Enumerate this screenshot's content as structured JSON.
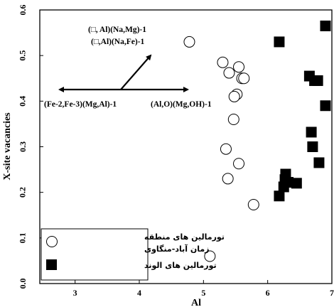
{
  "chart_data": {
    "type": "scatter",
    "xlabel": "Al",
    "ylabel": "X-site vacancies",
    "xlim": [
      2.45,
      7.0
    ],
    "ylim": [
      0.0,
      0.6
    ],
    "x_ticks": [
      "3",
      "4",
      "5",
      "6",
      "7"
    ],
    "y_ticks": [
      "0.0",
      "0.1",
      "0.2",
      "0.3",
      "0.4",
      "0.5",
      "0.6"
    ],
    "grid": false,
    "legend_position": "bottom-left",
    "series": [
      {
        "name": "تورمالین های منطقه زمان آباد-منگاوی",
        "legend_line1": "تورمالین های منطقه",
        "legend_line2": "زمان آباد-منگاوی",
        "marker": "open-circle",
        "points": [
          [
            4.78,
            0.53
          ],
          [
            5.3,
            0.485
          ],
          [
            5.4,
            0.462
          ],
          [
            5.55,
            0.475
          ],
          [
            5.6,
            0.45
          ],
          [
            5.63,
            0.45
          ],
          [
            5.52,
            0.415
          ],
          [
            5.48,
            0.41
          ],
          [
            5.47,
            0.36
          ],
          [
            5.35,
            0.295
          ],
          [
            5.55,
            0.263
          ],
          [
            5.38,
            0.23
          ],
          [
            5.78,
            0.173
          ],
          [
            5.1,
            0.06
          ]
        ]
      },
      {
        "name": "تورمالین های الوند",
        "marker": "filled-square",
        "points": [
          [
            6.9,
            0.565
          ],
          [
            6.18,
            0.53
          ],
          [
            6.65,
            0.455
          ],
          [
            6.73,
            0.445
          ],
          [
            6.78,
            0.445
          ],
          [
            6.9,
            0.39
          ],
          [
            6.68,
            0.332
          ],
          [
            6.7,
            0.3
          ],
          [
            6.8,
            0.265
          ],
          [
            6.28,
            0.24
          ],
          [
            6.27,
            0.228
          ],
          [
            6.25,
            0.212
          ],
          [
            6.32,
            0.222
          ],
          [
            6.45,
            0.22
          ],
          [
            6.18,
            0.192
          ]
        ]
      }
    ],
    "annotations": {
      "top_line1": "(□, Al)(Na,Mg)-1",
      "top_line2": "(□,Al)(Na,Fe)-1",
      "left_label": "(Fe-2,Fe-3)(Mg,Al)-1",
      "right_label": "(Al,O)(Mg,OH)-1"
    }
  }
}
